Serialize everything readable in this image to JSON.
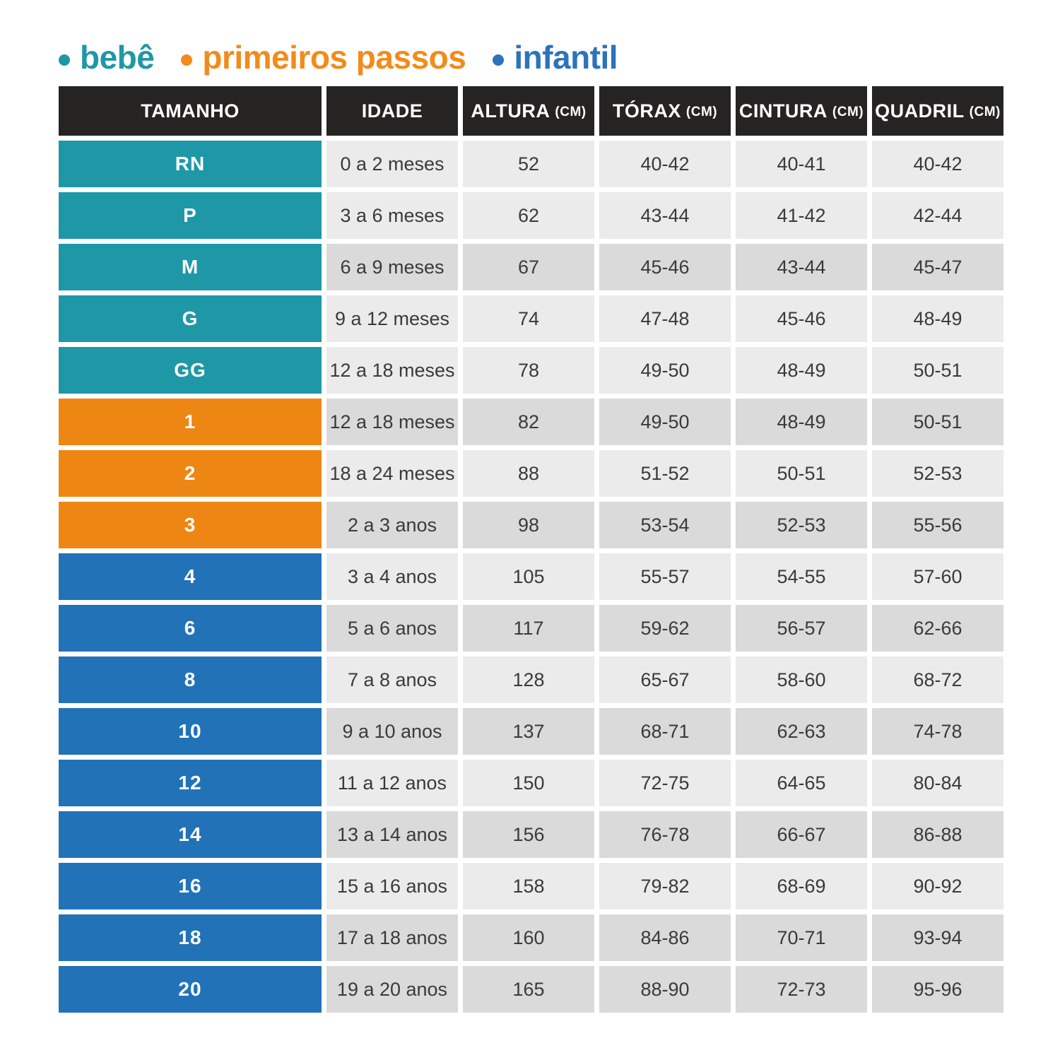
{
  "legend": {
    "items": [
      {
        "label": "bebê",
        "color": "#1E98A6",
        "category": "bebe"
      },
      {
        "label": "primeiros passos",
        "color": "#F28B1B",
        "category": "primeiros-passos"
      },
      {
        "label": "infantil",
        "color": "#2B74BC",
        "category": "infantil"
      }
    ]
  },
  "chart_data": {
    "type": "table",
    "fields": [
      "age",
      "height",
      "chest",
      "waist",
      "hip"
    ],
    "columns": [
      {
        "key": "tamanho",
        "label": "TAMANHO",
        "unit": ""
      },
      {
        "key": "idade",
        "label": "IDADE",
        "unit": ""
      },
      {
        "key": "altura",
        "label": "ALTURA",
        "unit": "(CM)"
      },
      {
        "key": "torax",
        "label": "TÓRAX",
        "unit": "(CM)"
      },
      {
        "key": "cintura",
        "label": "CINTURA",
        "unit": "(CM)"
      },
      {
        "key": "quadril",
        "label": "QUADRIL",
        "unit": "(CM)"
      }
    ],
    "rows": [
      {
        "size": "RN",
        "category": "bebe",
        "age": "0 a 2 meses",
        "height": "52",
        "chest": "40-42",
        "waist": "40-41",
        "hip": "40-42",
        "shade": "light"
      },
      {
        "size": "P",
        "category": "bebe",
        "age": "3 a 6 meses",
        "height": "62",
        "chest": "43-44",
        "waist": "41-42",
        "hip": "42-44",
        "shade": "light"
      },
      {
        "size": "M",
        "category": "bebe",
        "age": "6 a 9 meses",
        "height": "67",
        "chest": "45-46",
        "waist": "43-44",
        "hip": "45-47",
        "shade": "dark"
      },
      {
        "size": "G",
        "category": "bebe",
        "age": "9 a 12 meses",
        "height": "74",
        "chest": "47-48",
        "waist": "45-46",
        "hip": "48-49",
        "shade": "light"
      },
      {
        "size": "GG",
        "category": "bebe",
        "age": "12 a 18 meses",
        "height": "78",
        "chest": "49-50",
        "waist": "48-49",
        "hip": "50-51",
        "shade": "light"
      },
      {
        "size": "1",
        "category": "primeiros-passos",
        "age": "12 a 18 meses",
        "height": "82",
        "chest": "49-50",
        "waist": "48-49",
        "hip": "50-51",
        "shade": "dark"
      },
      {
        "size": "2",
        "category": "primeiros-passos",
        "age": "18 a 24 meses",
        "height": "88",
        "chest": "51-52",
        "waist": "50-51",
        "hip": "52-53",
        "shade": "light"
      },
      {
        "size": "3",
        "category": "primeiros-passos",
        "age": "2 a 3 anos",
        "height": "98",
        "chest": "53-54",
        "waist": "52-53",
        "hip": "55-56",
        "shade": "dark"
      },
      {
        "size": "4",
        "category": "infantil",
        "age": "3 a 4 anos",
        "height": "105",
        "chest": "55-57",
        "waist": "54-55",
        "hip": "57-60",
        "shade": "light"
      },
      {
        "size": "6",
        "category": "infantil",
        "age": "5 a 6 anos",
        "height": "117",
        "chest": "59-62",
        "waist": "56-57",
        "hip": "62-66",
        "shade": "dark"
      },
      {
        "size": "8",
        "category": "infantil",
        "age": "7 a 8 anos",
        "height": "128",
        "chest": "65-67",
        "waist": "58-60",
        "hip": "68-72",
        "shade": "light"
      },
      {
        "size": "10",
        "category": "infantil",
        "age": "9 a 10 anos",
        "height": "137",
        "chest": "68-71",
        "waist": "62-63",
        "hip": "74-78",
        "shade": "dark"
      },
      {
        "size": "12",
        "category": "infantil",
        "age": "11 a 12 anos",
        "height": "150",
        "chest": "72-75",
        "waist": "64-65",
        "hip": "80-84",
        "shade": "light"
      },
      {
        "size": "14",
        "category": "infantil",
        "age": "13 a 14 anos",
        "height": "156",
        "chest": "76-78",
        "waist": "66-67",
        "hip": "86-88",
        "shade": "dark"
      },
      {
        "size": "16",
        "category": "infantil",
        "age": "15 a 16 anos",
        "height": "158",
        "chest": "79-82",
        "waist": "68-69",
        "hip": "90-92",
        "shade": "light"
      },
      {
        "size": "18",
        "category": "infantil",
        "age": "17 a 18 anos",
        "height": "160",
        "chest": "84-86",
        "waist": "70-71",
        "hip": "93-94",
        "shade": "dark"
      },
      {
        "size": "20",
        "category": "infantil",
        "age": "19 a 20 anos",
        "height": "165",
        "chest": "88-90",
        "waist": "72-73",
        "hip": "95-96",
        "shade": "dark"
      }
    ]
  },
  "colors": {
    "header_bg": "#262323",
    "row_light": "#EBEBEB",
    "row_dark": "#DADADA",
    "category_bebe": "#1E98A6",
    "category_primeiros_passos": "#EE8613",
    "category_infantil": "#2272B8",
    "text_dark": "#3A3A3A",
    "text_white": "#FFFFFF"
  }
}
